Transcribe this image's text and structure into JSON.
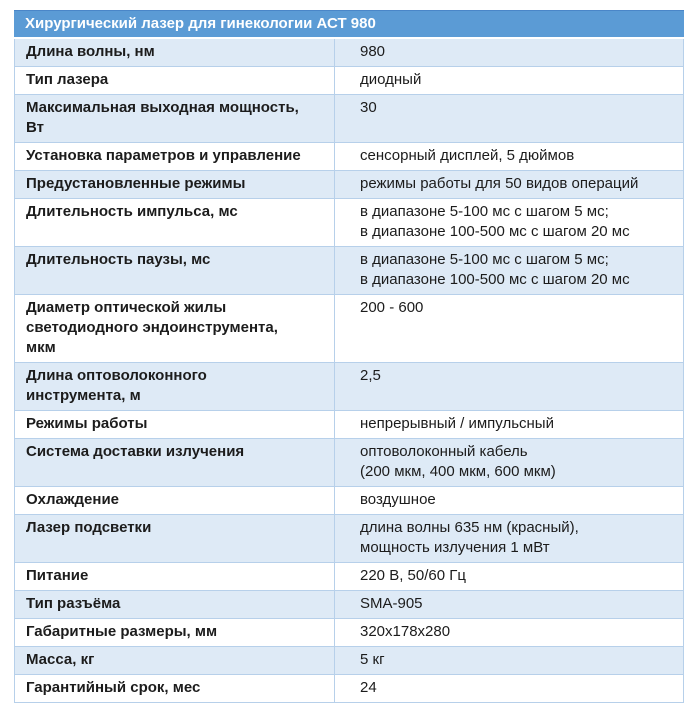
{
  "table": {
    "title": "Хирургический лазер для гинекологии АСТ 980",
    "rows": [
      {
        "label": "Длина волны, нм",
        "value_lines": [
          "980"
        ]
      },
      {
        "label": "Тип лазера",
        "value_lines": [
          "диодный"
        ]
      },
      {
        "label": "Максимальная выходная мощность, Вт",
        "value_lines": [
          "30"
        ]
      },
      {
        "label": "Установка параметров и управление",
        "value_lines": [
          "сенсорный дисплей, 5 дюймов"
        ]
      },
      {
        "label": "Предустановленные режимы",
        "value_lines": [
          "режимы работы для 50 видов операций"
        ]
      },
      {
        "label": "Длительность импульса, мс",
        "value_lines": [
          "в диапазоне 5-100 мс с шагом 5 мс;",
          "в диапазоне 100-500 мс с шагом 20 мс"
        ]
      },
      {
        "label": "Длительность паузы, мс",
        "value_lines": [
          "в диапазоне 5-100 мс с шагом 5 мс;",
          "в диапазоне 100-500 мс с шагом 20 мс"
        ]
      },
      {
        "label": "Диаметр оптической жилы светодиодного эндоинструмента, мкм",
        "value_lines": [
          "200 - 600"
        ]
      },
      {
        "label": "Длина оптоволоконного инструмента, м",
        "value_lines": [
          "2,5"
        ]
      },
      {
        "label": "Режимы работы",
        "value_lines": [
          "непрерывный / импульсный"
        ]
      },
      {
        "label": "Система доставки излучения",
        "value_lines": [
          "оптоволоконный кабель",
          "(200 мкм, 400 мкм, 600 мкм)"
        ]
      },
      {
        "label": "Охлаждение",
        "value_lines": [
          "воздушное"
        ]
      },
      {
        "label": "Лазер подсветки",
        "value_lines": [
          "длина волны 635 нм (красный),",
          "мощность излучения 1 мВт"
        ]
      },
      {
        "label": "Питание",
        "value_lines": [
          "220 В, 50/60 Гц"
        ]
      },
      {
        "label": "Тип разъёма",
        "value_lines": [
          "SMA-905"
        ]
      },
      {
        "label": "Габаритные размеры, мм",
        "value_lines": [
          "320x178x280"
        ]
      },
      {
        "label": "Масса, кг",
        "value_lines": [
          "5 кг"
        ]
      },
      {
        "label": "Гарантийный срок, мес",
        "value_lines": [
          "24"
        ]
      }
    ]
  },
  "colors": {
    "header_bg": "#5B9BD5",
    "header_text": "#FFFFFF",
    "row_alt_bg": "#DEEAF6",
    "row_bg": "#FFFFFF",
    "border": "#B7D0EA",
    "text": "#1C1C1C"
  }
}
